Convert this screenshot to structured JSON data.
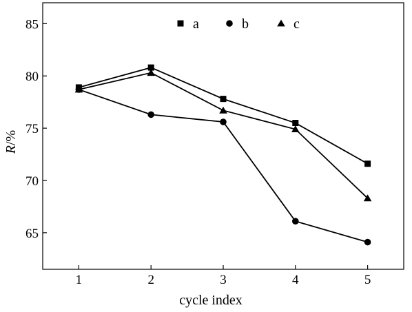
{
  "chart_data": {
    "type": "line",
    "title": "",
    "xlabel": "cycle index",
    "ylabel_italic": "R",
    "ylabel_suffix": "/%",
    "x": [
      1,
      2,
      3,
      4,
      5
    ],
    "xlim": [
      0.5,
      5.5
    ],
    "ylim": [
      61.5,
      87
    ],
    "xticks": [
      1,
      2,
      3,
      4,
      5
    ],
    "yticks": [
      65,
      70,
      75,
      80,
      85
    ],
    "grid": false,
    "legend_position": "top-center",
    "legend_orientation": "horizontal",
    "line_color": "#000000",
    "series": [
      {
        "name": "a",
        "marker": "square",
        "values": [
          78.9,
          80.8,
          77.8,
          75.5,
          71.6
        ]
      },
      {
        "name": "b",
        "marker": "circle",
        "values": [
          78.7,
          76.3,
          75.6,
          66.1,
          64.1
        ]
      },
      {
        "name": "c",
        "marker": "triangle",
        "values": [
          78.7,
          80.3,
          76.7,
          74.9,
          68.3
        ]
      }
    ]
  }
}
